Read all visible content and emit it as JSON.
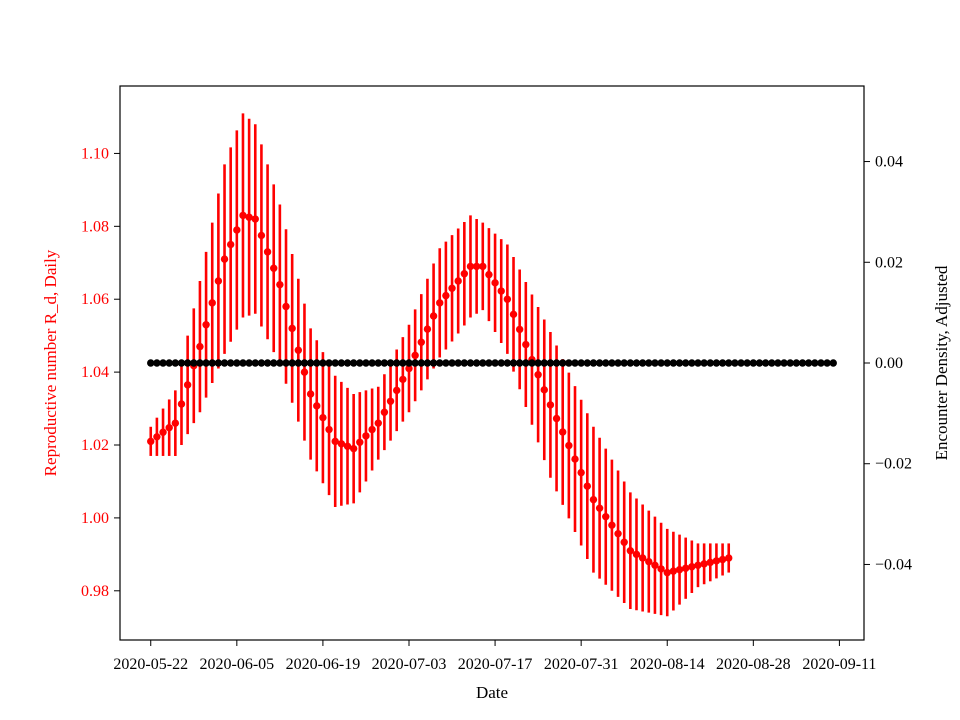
{
  "chart_data": {
    "type": "scatter",
    "xlabel": "Date",
    "ylabel_left": "Reproductive number R_d, Daily",
    "ylabel_right": "Encounter Density, Adjusted",
    "x_ticks": [
      "2020-05-22",
      "2020-06-05",
      "2020-06-19",
      "2020-07-03",
      "2020-07-17",
      "2020-07-31",
      "2020-08-14",
      "2020-08-28",
      "2020-09-11"
    ],
    "y_left_ticks": [
      "0.98",
      "1.00",
      "1.02",
      "1.04",
      "1.06",
      "1.08",
      "1.10"
    ],
    "y_right_ticks": [
      "−0.04",
      "−0.02",
      "0.00",
      "0.02",
      "0.04"
    ],
    "x_range": [
      "2020-05-17",
      "2020-09-15"
    ],
    "y_left_range": [
      0.9665,
      1.1185
    ],
    "y_right_range": [
      -0.055,
      0.055
    ],
    "grid": false,
    "colors": {
      "r_series": "#ff0000",
      "density_series": "#000000"
    },
    "series": [
      {
        "axis": "left",
        "start_date": "2020-05-22",
        "end_date": "2020-08-24",
        "keypoints": [
          {
            "date": "2020-05-22",
            "value": 1.021,
            "err": 0.004
          },
          {
            "date": "2020-05-26",
            "value": 1.026,
            "err": 0.009
          },
          {
            "date": "2020-05-30",
            "value": 1.047,
            "err": 0.018
          },
          {
            "date": "2020-06-03",
            "value": 1.071,
            "err": 0.026
          },
          {
            "date": "2020-06-06",
            "value": 1.083,
            "err": 0.028
          },
          {
            "date": "2020-06-08",
            "value": 1.082,
            "err": 0.026
          },
          {
            "date": "2020-06-12",
            "value": 1.064,
            "err": 0.022
          },
          {
            "date": "2020-06-17",
            "value": 1.034,
            "err": 0.018
          },
          {
            "date": "2020-06-21",
            "value": 1.021,
            "err": 0.018
          },
          {
            "date": "2020-06-24",
            "value": 1.019,
            "err": 0.015
          },
          {
            "date": "2020-06-28",
            "value": 1.026,
            "err": 0.01
          },
          {
            "date": "2020-07-03",
            "value": 1.041,
            "err": 0.012
          },
          {
            "date": "2020-07-08",
            "value": 1.059,
            "err": 0.015
          },
          {
            "date": "2020-07-13",
            "value": 1.069,
            "err": 0.014
          },
          {
            "date": "2020-07-15",
            "value": 1.069,
            "err": 0.012
          },
          {
            "date": "2020-07-19",
            "value": 1.06,
            "err": 0.015
          },
          {
            "date": "2020-07-26",
            "value": 1.031,
            "err": 0.02
          },
          {
            "date": "2020-08-02",
            "value": 1.005,
            "err": 0.02
          },
          {
            "date": "2020-08-08",
            "value": 0.991,
            "err": 0.016
          },
          {
            "date": "2020-08-14",
            "value": 0.985,
            "err": 0.012
          },
          {
            "date": "2020-08-19",
            "value": 0.987,
            "err": 0.006
          },
          {
            "date": "2020-08-24",
            "value": 0.989,
            "err": 0.004
          }
        ]
      },
      {
        "axis": "right",
        "start_date": "2020-05-22",
        "end_date": "2020-09-10",
        "value": 0.0
      }
    ]
  }
}
